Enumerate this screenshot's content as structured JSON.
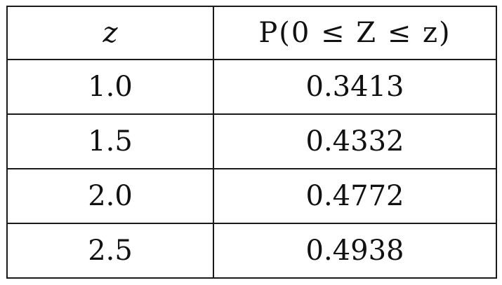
{
  "table": {
    "headers": {
      "z": "z",
      "p": "P(0 ≤ Z ≤ z)"
    },
    "rows": [
      {
        "z": "1.0",
        "p": "0.3413"
      },
      {
        "z": "1.5",
        "p": "0.4332"
      },
      {
        "z": "2.0",
        "p": "0.4772"
      },
      {
        "z": "2.5",
        "p": "0.4938"
      }
    ]
  }
}
